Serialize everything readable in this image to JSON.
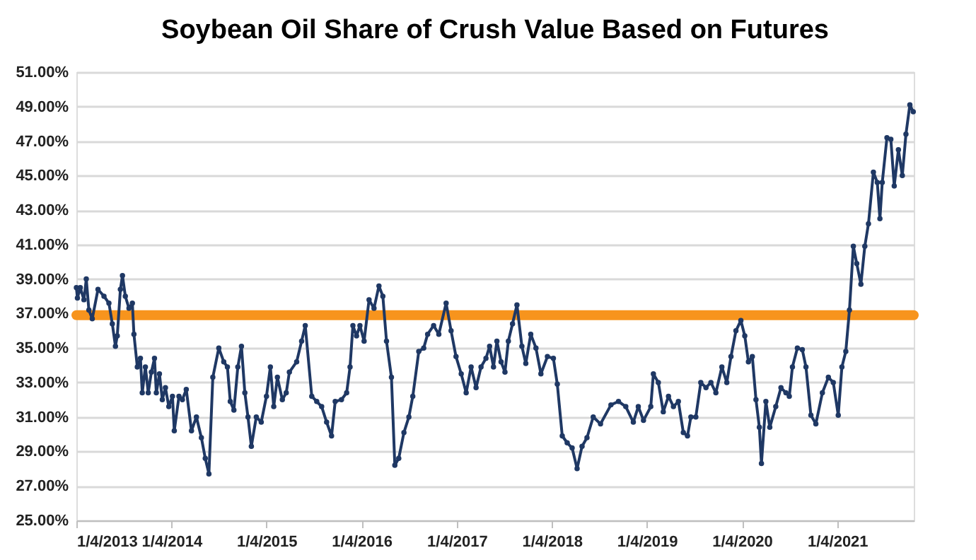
{
  "chart_data": {
    "type": "line",
    "title": "Soybean Oil Share of Crush Value Based on Futures",
    "x": [
      "2013-01-04",
      "2013-01-08",
      "2013-01-19",
      "2013-02-02",
      "2013-02-11",
      "2013-02-21",
      "2013-03-06",
      "2013-03-28",
      "2013-04-20",
      "2013-05-09",
      "2013-05-22",
      "2013-06-03",
      "2013-06-10",
      "2013-06-22",
      "2013-06-30",
      "2013-07-11",
      "2013-07-25",
      "2013-08-07",
      "2013-08-13",
      "2013-08-26",
      "2013-09-07",
      "2013-09-14",
      "2013-09-26",
      "2013-10-07",
      "2013-10-19",
      "2013-10-31",
      "2013-11-07",
      "2013-11-19",
      "2013-11-30",
      "2013-12-12",
      "2013-12-25",
      "2014-01-08",
      "2014-01-15",
      "2014-02-02",
      "2014-02-15",
      "2014-03-02",
      "2014-03-22",
      "2014-04-10",
      "2014-04-29",
      "2014-05-14",
      "2014-05-28",
      "2014-06-12",
      "2014-07-05",
      "2014-07-24",
      "2014-08-07",
      "2014-08-18",
      "2014-09-01",
      "2014-09-16",
      "2014-09-30",
      "2014-10-13",
      "2014-10-25",
      "2014-11-07",
      "2014-11-26",
      "2014-12-15",
      "2015-01-04",
      "2015-01-19",
      "2015-02-01",
      "2015-02-15",
      "2015-03-06",
      "2015-03-21",
      "2015-04-02",
      "2015-04-30",
      "2015-05-19",
      "2015-06-02",
      "2015-06-27",
      "2015-07-16",
      "2015-08-04",
      "2015-08-23",
      "2015-09-11",
      "2015-09-25",
      "2015-10-19",
      "2015-11-08",
      "2015-11-21",
      "2015-12-02",
      "2015-12-16",
      "2015-12-29",
      "2016-01-14",
      "2016-02-02",
      "2016-02-21",
      "2016-03-11",
      "2016-03-26",
      "2016-04-09",
      "2016-04-28",
      "2016-05-11",
      "2016-05-26",
      "2016-06-15",
      "2016-07-04",
      "2016-07-19",
      "2016-08-11",
      "2016-08-30",
      "2016-09-14",
      "2016-10-07",
      "2016-10-27",
      "2016-11-24",
      "2016-12-13",
      "2017-01-01",
      "2017-01-21",
      "2017-02-09",
      "2017-02-28",
      "2017-03-19",
      "2017-04-07",
      "2017-04-26",
      "2017-05-10",
      "2017-05-25",
      "2017-06-07",
      "2017-06-23",
      "2017-07-08",
      "2017-07-21",
      "2017-08-06",
      "2017-08-23",
      "2017-09-11",
      "2017-09-26",
      "2017-10-15",
      "2017-11-04",
      "2017-11-23",
      "2017-12-18",
      "2018-01-10",
      "2018-01-25",
      "2018-02-13",
      "2018-03-04",
      "2018-03-23",
      "2018-04-11",
      "2018-04-30",
      "2018-05-19",
      "2018-06-12",
      "2018-07-10",
      "2018-08-19",
      "2018-09-17",
      "2018-10-15",
      "2018-11-13",
      "2018-12-02",
      "2018-12-22",
      "2019-01-19",
      "2019-01-29",
      "2019-02-17",
      "2019-03-08",
      "2019-03-28",
      "2019-04-16",
      "2019-05-05",
      "2019-05-24",
      "2019-06-09",
      "2019-06-22",
      "2019-07-11",
      "2019-07-30",
      "2019-08-19",
      "2019-09-07",
      "2019-09-26",
      "2019-10-19",
      "2019-11-07",
      "2019-11-23",
      "2019-12-12",
      "2019-12-31",
      "2020-01-15",
      "2020-01-29",
      "2020-02-13",
      "2020-02-27",
      "2020-03-11",
      "2020-03-19",
      "2020-04-05",
      "2020-04-20",
      "2020-05-13",
      "2020-06-02",
      "2020-06-21",
      "2020-07-04",
      "2020-07-16",
      "2020-08-04",
      "2020-08-23",
      "2020-09-06",
      "2020-09-25",
      "2020-10-14",
      "2020-11-08",
      "2020-12-01",
      "2020-12-20",
      "2021-01-08",
      "2021-01-22",
      "2021-02-06",
      "2021-02-20",
      "2021-03-07",
      "2021-03-20",
      "2021-04-05",
      "2021-04-20",
      "2021-05-04",
      "2021-05-23",
      "2021-06-07",
      "2021-06-17",
      "2021-06-26",
      "2021-07-14",
      "2021-07-29",
      "2021-08-11",
      "2021-08-27",
      "2021-09-11",
      "2021-09-25",
      "2021-10-10",
      "2021-10-23"
    ],
    "series": [
      {
        "color": "#1f3864",
        "values": [
          38.5,
          37.9,
          38.5,
          37.8,
          39.0,
          37.2,
          36.7,
          38.4,
          38.0,
          37.6,
          36.4,
          35.1,
          35.7,
          38.4,
          39.2,
          38.0,
          37.3,
          37.6,
          35.8,
          33.9,
          34.4,
          32.4,
          33.9,
          32.4,
          33.6,
          34.4,
          32.4,
          33.5,
          32.0,
          32.7,
          31.6,
          32.2,
          30.2,
          32.2,
          32.0,
          32.6,
          30.2,
          31.0,
          29.8,
          28.6,
          27.7,
          33.3,
          35.0,
          34.2,
          33.9,
          31.9,
          31.4,
          33.9,
          35.1,
          32.4,
          31.0,
          29.3,
          31.0,
          30.7,
          32.2,
          33.9,
          31.6,
          33.3,
          32.0,
          32.4,
          33.6,
          34.2,
          35.4,
          36.3,
          32.2,
          31.9,
          31.6,
          30.7,
          29.9,
          31.9,
          32.0,
          32.4,
          33.9,
          36.3,
          35.7,
          36.3,
          35.4,
          37.8,
          37.3,
          38.6,
          38.0,
          35.4,
          33.3,
          28.2,
          28.6,
          30.1,
          31.0,
          32.2,
          34.8,
          35.0,
          35.8,
          36.3,
          35.8,
          37.6,
          36.0,
          34.5,
          33.5,
          32.4,
          33.9,
          32.7,
          33.9,
          34.4,
          35.1,
          33.9,
          35.4,
          34.2,
          33.6,
          35.4,
          36.4,
          37.5,
          35.1,
          34.1,
          35.8,
          35.0,
          33.5,
          34.5,
          34.4,
          32.9,
          29.9,
          29.5,
          29.2,
          28.0,
          29.3,
          29.8,
          31.0,
          30.6,
          31.7,
          31.9,
          31.6,
          30.7,
          31.6,
          30.8,
          31.6,
          33.5,
          33.0,
          31.3,
          32.2,
          31.6,
          31.9,
          30.1,
          29.9,
          31.0,
          31.0,
          33.0,
          32.7,
          33.0,
          32.4,
          33.9,
          33.0,
          34.5,
          36.0,
          36.6,
          35.7,
          34.2,
          34.5,
          32.0,
          30.4,
          28.3,
          31.9,
          30.4,
          31.6,
          32.7,
          32.4,
          32.2,
          33.9,
          35.0,
          34.9,
          33.9,
          31.1,
          30.6,
          32.4,
          33.3,
          33.0,
          31.1,
          33.9,
          34.8,
          37.2,
          40.9,
          39.9,
          38.7,
          40.9,
          42.2,
          45.2,
          44.6,
          42.5,
          44.6,
          47.2,
          47.1,
          44.4,
          46.5,
          45.0,
          47.4,
          49.1,
          48.7
        ]
      }
    ],
    "xlim": [
      "2013-01-04",
      "2021-10-25"
    ],
    "xticks": [
      {
        "value": "2013-01-04",
        "label": "1/4/2013"
      },
      {
        "value": "2014-01-04",
        "label": "1/4/2014"
      },
      {
        "value": "2015-01-04",
        "label": "1/4/2015"
      },
      {
        "value": "2016-01-04",
        "label": "1/4/2016"
      },
      {
        "value": "2017-01-04",
        "label": "1/4/2017"
      },
      {
        "value": "2018-01-04",
        "label": "1/4/2018"
      },
      {
        "value": "2019-01-04",
        "label": "1/4/2019"
      },
      {
        "value": "2020-01-04",
        "label": "1/4/2020"
      },
      {
        "value": "2021-01-04",
        "label": "1/4/2021"
      }
    ],
    "ylim": [
      25,
      51
    ],
    "yticks": [
      {
        "value": 25,
        "label": "25.00%"
      },
      {
        "value": 27,
        "label": "27.00%"
      },
      {
        "value": 29,
        "label": "29.00%"
      },
      {
        "value": 31,
        "label": "31.00%"
      },
      {
        "value": 33,
        "label": "33.00%"
      },
      {
        "value": 35,
        "label": "35.00%"
      },
      {
        "value": 37,
        "label": "37.00%"
      },
      {
        "value": 39,
        "label": "39.00%"
      },
      {
        "value": 41,
        "label": "41.00%"
      },
      {
        "value": 43,
        "label": "43.00%"
      },
      {
        "value": 45,
        "label": "45.00%"
      },
      {
        "value": 47,
        "label": "47.00%"
      },
      {
        "value": 49,
        "label": "49.00%"
      },
      {
        "value": 51,
        "label": "51.00%"
      }
    ],
    "ref_lines": [
      {
        "axis": "y",
        "value": 36.9,
        "color": "#f7941d"
      }
    ],
    "grid": "y",
    "marker": "circle",
    "line_style": "solid"
  }
}
